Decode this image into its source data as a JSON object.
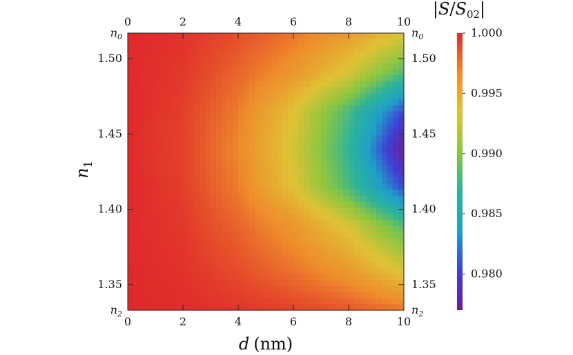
{
  "chart_data": {
    "type": "heatmap",
    "x": {
      "label_var": "d",
      "label_unit": "(nm)",
      "range": [
        0,
        10
      ],
      "ticks": [
        0,
        2,
        4,
        6,
        8,
        10
      ],
      "tick_labels": [
        "0",
        "2",
        "4",
        "6",
        "8",
        "10"
      ]
    },
    "y": {
      "label_var": "n",
      "label_sub": "1",
      "range": [
        1.333,
        1.517
      ],
      "ticks": [
        1.35,
        1.4,
        1.45,
        1.5
      ],
      "tick_labels": [
        "1.35",
        "1.40",
        "1.45",
        "1.50"
      ],
      "edge_labels": {
        "top": {
          "base": "n",
          "sub": "0"
        },
        "bottom": {
          "base": "n",
          "sub": "2"
        }
      }
    },
    "colorbar": {
      "title": "|S/S02|",
      "title_parts": {
        "open": "|",
        "num": "S",
        "slash": "/",
        "den": "S",
        "den_sub": "02",
        "close": "|"
      },
      "range": [
        0.977,
        1.0
      ],
      "ticks": [
        0.98,
        0.985,
        0.99,
        0.995,
        1.0
      ],
      "tick_labels": [
        "0.980",
        "0.985",
        "0.990",
        "0.995",
        "1.000"
      ],
      "colormap": [
        "#6a1f99",
        "#3f3fd6",
        "#1fa0c8",
        "#2cb39a",
        "#8cc640",
        "#e0c234",
        "#ef8b2c",
        "#e0292b"
      ]
    },
    "values": [
      [
        1.0,
        0.9997,
        0.9988,
        0.9975,
        0.9958,
        0.9935
      ],
      [
        1.0,
        0.9995,
        0.998,
        0.996,
        0.993,
        0.988
      ],
      [
        1.0,
        0.9993,
        0.9972,
        0.9935,
        0.988,
        0.9805
      ],
      [
        1.0,
        0.9992,
        0.9968,
        0.993,
        0.987,
        0.977
      ],
      [
        1.0,
        0.9993,
        0.9972,
        0.9935,
        0.988,
        0.9805
      ],
      [
        1.0,
        0.9995,
        0.998,
        0.996,
        0.993,
        0.988
      ],
      [
        1.0,
        0.9997,
        0.9988,
        0.9975,
        0.9958,
        0.993
      ],
      [
        1.0,
        0.9999,
        0.9996,
        0.9992,
        0.9985,
        0.9975
      ]
    ],
    "value_rows_n1": [
      1.517,
      1.49,
      1.465,
      1.44,
      1.415,
      1.39,
      1.36,
      1.333
    ],
    "value_cols_d": [
      0,
      2,
      4,
      6,
      8,
      10
    ]
  }
}
